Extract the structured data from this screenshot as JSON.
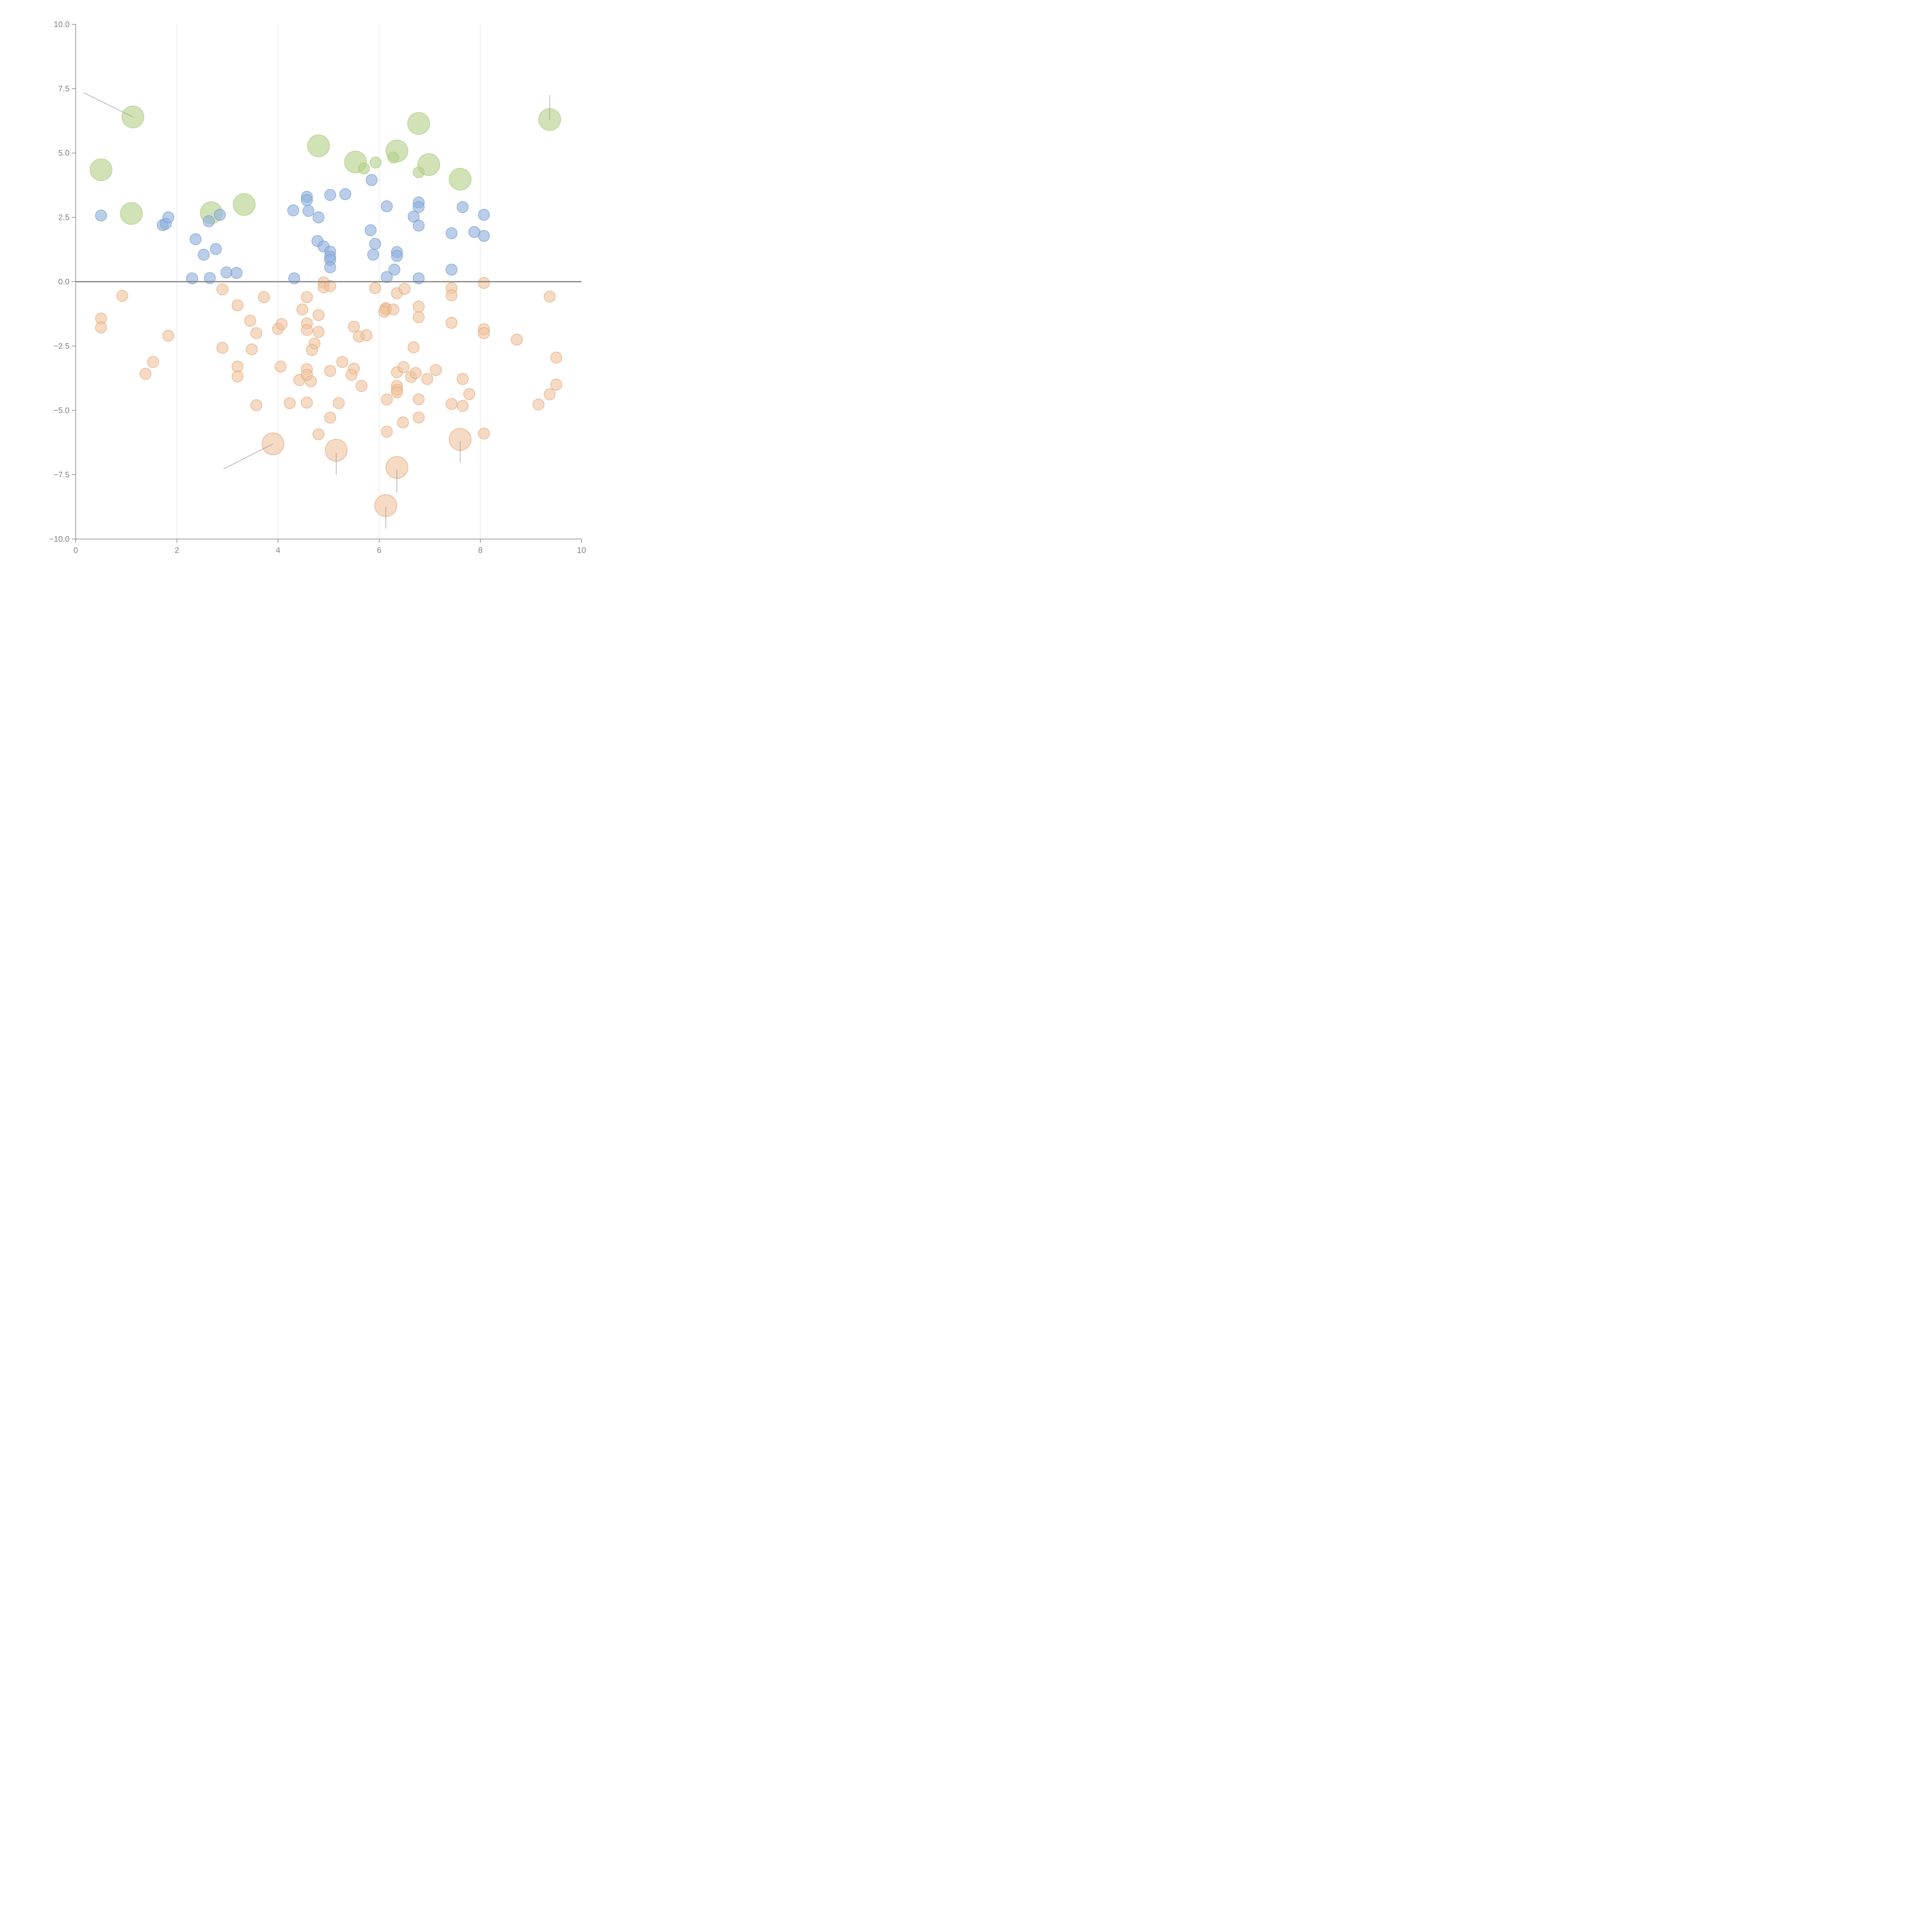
{
  "chart_data": {
    "type": "scatter",
    "title": "",
    "xlabel": "",
    "ylabel": "",
    "xlim": [
      0,
      10
    ],
    "ylim": [
      -10,
      10
    ],
    "grid": "vertical",
    "x_ticks": [
      "0",
      "2",
      "4",
      "6",
      "8",
      "10"
    ],
    "y_ticks": [
      "10.0",
      "7.5",
      "5.0",
      "2.5",
      "0.0",
      "−2.5",
      "−5.0",
      "−7.5",
      "−10.0"
    ],
    "x_tick_values": [
      0,
      2,
      4,
      6,
      8,
      10
    ],
    "y_tick_values": [
      10,
      7.5,
      5,
      2.5,
      0,
      -2.5,
      -5,
      -7.5,
      -10
    ],
    "zero_line": 0,
    "series": [
      {
        "name": "green",
        "color": "#b5d08a",
        "stroke": "#a9c97a",
        "points": [
          {
            "x": 1.13,
            "y": 6.4,
            "s": 2
          },
          {
            "x": 0.5,
            "y": 4.35,
            "s": 2
          },
          {
            "x": 1.1,
            "y": 2.65,
            "s": 2
          },
          {
            "x": 2.68,
            "y": 2.68,
            "s": 2
          },
          {
            "x": 3.33,
            "y": 3.0,
            "s": 2
          },
          {
            "x": 4.8,
            "y": 5.28,
            "s": 2
          },
          {
            "x": 5.53,
            "y": 4.65,
            "s": 2
          },
          {
            "x": 5.7,
            "y": 4.4,
            "s": 1
          },
          {
            "x": 5.93,
            "y": 4.63,
            "s": 1
          },
          {
            "x": 6.28,
            "y": 4.82,
            "s": 1
          },
          {
            "x": 6.35,
            "y": 5.08,
            "s": 2
          },
          {
            "x": 6.78,
            "y": 6.15,
            "s": 2
          },
          {
            "x": 6.78,
            "y": 4.25,
            "s": 1
          },
          {
            "x": 6.98,
            "y": 4.55,
            "s": 2
          },
          {
            "x": 7.6,
            "y": 3.98,
            "s": 2
          },
          {
            "x": 9.37,
            "y": 6.3,
            "s": 2
          }
        ]
      },
      {
        "name": "blue",
        "color": "#8fb0db",
        "stroke": "#6f98cf",
        "points": [
          {
            "x": 0.5,
            "y": 2.57,
            "s": 1
          },
          {
            "x": 1.72,
            "y": 2.2,
            "s": 1
          },
          {
            "x": 1.78,
            "y": 2.25,
            "s": 1
          },
          {
            "x": 1.83,
            "y": 2.5,
            "s": 1
          },
          {
            "x": 2.37,
            "y": 1.65,
            "s": 1
          },
          {
            "x": 2.53,
            "y": 1.05,
            "s": 1
          },
          {
            "x": 2.3,
            "y": 0.13,
            "s": 1
          },
          {
            "x": 2.63,
            "y": 2.35,
            "s": 1
          },
          {
            "x": 2.65,
            "y": 0.14,
            "s": 1
          },
          {
            "x": 2.77,
            "y": 1.27,
            "s": 1
          },
          {
            "x": 2.85,
            "y": 2.6,
            "s": 1
          },
          {
            "x": 2.98,
            "y": 0.36,
            "s": 1
          },
          {
            "x": 3.18,
            "y": 0.34,
            "s": 1
          },
          {
            "x": 4.3,
            "y": 2.77,
            "s": 1
          },
          {
            "x": 4.32,
            "y": 0.13,
            "s": 1
          },
          {
            "x": 4.57,
            "y": 3.3,
            "s": 1
          },
          {
            "x": 4.57,
            "y": 3.17,
            "s": 1
          },
          {
            "x": 4.6,
            "y": 2.75,
            "s": 1
          },
          {
            "x": 4.8,
            "y": 2.5,
            "s": 1
          },
          {
            "x": 4.78,
            "y": 1.58,
            "s": 1
          },
          {
            "x": 4.9,
            "y": 1.37,
            "s": 1
          },
          {
            "x": 5.03,
            "y": 1.17,
            "s": 1
          },
          {
            "x": 5.03,
            "y": 0.97,
            "s": 1
          },
          {
            "x": 5.03,
            "y": 0.85,
            "s": 1
          },
          {
            "x": 5.03,
            "y": 0.56,
            "s": 1
          },
          {
            "x": 5.03,
            "y": 3.37,
            "s": 1
          },
          {
            "x": 5.33,
            "y": 3.4,
            "s": 1
          },
          {
            "x": 5.85,
            "y": 3.95,
            "s": 1
          },
          {
            "x": 5.83,
            "y": 2.0,
            "s": 1
          },
          {
            "x": 5.92,
            "y": 1.47,
            "s": 1
          },
          {
            "x": 5.88,
            "y": 1.05,
            "s": 1
          },
          {
            "x": 6.15,
            "y": 2.93,
            "s": 1
          },
          {
            "x": 6.15,
            "y": 0.18,
            "s": 1
          },
          {
            "x": 6.3,
            "y": 0.47,
            "s": 1
          },
          {
            "x": 6.35,
            "y": 1.15,
            "s": 1
          },
          {
            "x": 6.35,
            "y": 1.0,
            "s": 1
          },
          {
            "x": 6.68,
            "y": 2.53,
            "s": 1
          },
          {
            "x": 6.78,
            "y": 3.08,
            "s": 1
          },
          {
            "x": 6.78,
            "y": 2.9,
            "s": 1
          },
          {
            "x": 6.78,
            "y": 2.18,
            "s": 1
          },
          {
            "x": 6.78,
            "y": 0.13,
            "s": 1
          },
          {
            "x": 7.43,
            "y": 1.88,
            "s": 1
          },
          {
            "x": 7.43,
            "y": 0.47,
            "s": 1
          },
          {
            "x": 7.65,
            "y": 2.9,
            "s": 1
          },
          {
            "x": 7.88,
            "y": 1.93,
            "s": 1
          },
          {
            "x": 8.07,
            "y": 2.6,
            "s": 1
          },
          {
            "x": 8.07,
            "y": 1.78,
            "s": 1
          }
        ]
      },
      {
        "name": "orange",
        "color": "#efc49f",
        "stroke": "#e4a470",
        "points": [
          {
            "x": 0.92,
            "y": -0.55,
            "s": 1
          },
          {
            "x": 0.5,
            "y": -1.43,
            "s": 1
          },
          {
            "x": 0.5,
            "y": -1.78,
            "s": 1
          },
          {
            "x": 1.83,
            "y": -2.1,
            "s": 1
          },
          {
            "x": 1.53,
            "y": -3.12,
            "s": 1
          },
          {
            "x": 1.38,
            "y": -3.58,
            "s": 1
          },
          {
            "x": 2.9,
            "y": -0.3,
            "s": 1
          },
          {
            "x": 3.2,
            "y": -0.92,
            "s": 1
          },
          {
            "x": 3.45,
            "y": -1.52,
            "s": 1
          },
          {
            "x": 3.57,
            "y": -2.0,
            "s": 1
          },
          {
            "x": 3.48,
            "y": -2.63,
            "s": 1
          },
          {
            "x": 2.9,
            "y": -2.57,
            "s": 1
          },
          {
            "x": 3.2,
            "y": -3.3,
            "s": 1
          },
          {
            "x": 3.2,
            "y": -3.68,
            "s": 1
          },
          {
            "x": 3.57,
            "y": -4.8,
            "s": 1
          },
          {
            "x": 3.72,
            "y": -0.6,
            "s": 1
          },
          {
            "x": 4.0,
            "y": -1.83,
            "s": 1
          },
          {
            "x": 4.07,
            "y": -1.65,
            "s": 1
          },
          {
            "x": 4.05,
            "y": -3.3,
            "s": 1
          },
          {
            "x": 4.23,
            "y": -4.72,
            "s": 1
          },
          {
            "x": 4.42,
            "y": -3.82,
            "s": 1
          },
          {
            "x": 4.48,
            "y": -1.08,
            "s": 1
          },
          {
            "x": 4.57,
            "y": -0.6,
            "s": 1
          },
          {
            "x": 4.57,
            "y": -1.62,
            "s": 1
          },
          {
            "x": 4.57,
            "y": -1.88,
            "s": 1
          },
          {
            "x": 4.57,
            "y": -3.4,
            "s": 1
          },
          {
            "x": 4.57,
            "y": -3.62,
            "s": 1
          },
          {
            "x": 4.65,
            "y": -3.87,
            "s": 1
          },
          {
            "x": 4.57,
            "y": -4.7,
            "s": 1
          },
          {
            "x": 4.72,
            "y": -2.4,
            "s": 1
          },
          {
            "x": 4.67,
            "y": -2.65,
            "s": 1
          },
          {
            "x": 4.8,
            "y": -1.3,
            "s": 1
          },
          {
            "x": 4.8,
            "y": -1.95,
            "s": 1
          },
          {
            "x": 4.8,
            "y": -5.93,
            "s": 1
          },
          {
            "x": 4.9,
            "y": -0.03,
            "s": 1
          },
          {
            "x": 4.9,
            "y": -0.22,
            "s": 1
          },
          {
            "x": 5.03,
            "y": -0.17,
            "s": 1
          },
          {
            "x": 5.03,
            "y": -3.47,
            "s": 1
          },
          {
            "x": 5.03,
            "y": -5.28,
            "s": 1
          },
          {
            "x": 5.27,
            "y": -3.12,
            "s": 1
          },
          {
            "x": 5.2,
            "y": -4.72,
            "s": 1
          },
          {
            "x": 5.5,
            "y": -1.75,
            "s": 1
          },
          {
            "x": 5.6,
            "y": -2.13,
            "s": 1
          },
          {
            "x": 5.5,
            "y": -3.38,
            "s": 1
          },
          {
            "x": 5.45,
            "y": -3.62,
            "s": 1
          },
          {
            "x": 5.75,
            "y": -2.08,
            "s": 1
          },
          {
            "x": 5.65,
            "y": -4.05,
            "s": 1
          },
          {
            "x": 5.92,
            "y": -0.25,
            "s": 1
          },
          {
            "x": 6.13,
            "y": -1.03,
            "s": 1
          },
          {
            "x": 6.13,
            "y": -1.08,
            "s": 1
          },
          {
            "x": 6.1,
            "y": -1.17,
            "s": 1
          },
          {
            "x": 6.28,
            "y": -1.08,
            "s": 1
          },
          {
            "x": 6.35,
            "y": -0.45,
            "s": 1
          },
          {
            "x": 6.5,
            "y": -0.28,
            "s": 1
          },
          {
            "x": 6.35,
            "y": -3.52,
            "s": 1
          },
          {
            "x": 6.48,
            "y": -3.32,
            "s": 1
          },
          {
            "x": 6.35,
            "y": -4.05,
            "s": 1
          },
          {
            "x": 6.35,
            "y": -4.2,
            "s": 1
          },
          {
            "x": 6.35,
            "y": -4.3,
            "s": 1
          },
          {
            "x": 6.15,
            "y": -4.58,
            "s": 1
          },
          {
            "x": 6.47,
            "y": -5.47,
            "s": 1
          },
          {
            "x": 6.15,
            "y": -5.83,
            "s": 1
          },
          {
            "x": 6.63,
            "y": -3.7,
            "s": 1
          },
          {
            "x": 6.72,
            "y": -3.55,
            "s": 1
          },
          {
            "x": 6.68,
            "y": -2.55,
            "s": 1
          },
          {
            "x": 6.78,
            "y": -0.97,
            "s": 1
          },
          {
            "x": 6.78,
            "y": -1.38,
            "s": 1
          },
          {
            "x": 6.78,
            "y": -4.57,
            "s": 1
          },
          {
            "x": 6.78,
            "y": -5.28,
            "s": 1
          },
          {
            "x": 6.95,
            "y": -3.78,
            "s": 1
          },
          {
            "x": 7.12,
            "y": -3.43,
            "s": 1
          },
          {
            "x": 7.43,
            "y": -0.25,
            "s": 1
          },
          {
            "x": 7.43,
            "y": -0.53,
            "s": 1
          },
          {
            "x": 7.43,
            "y": -1.6,
            "s": 1
          },
          {
            "x": 7.43,
            "y": -4.75,
            "s": 1
          },
          {
            "x": 7.65,
            "y": -3.78,
            "s": 1
          },
          {
            "x": 7.65,
            "y": -4.83,
            "s": 1
          },
          {
            "x": 7.78,
            "y": -4.37,
            "s": 1
          },
          {
            "x": 8.07,
            "y": -0.05,
            "s": 1
          },
          {
            "x": 8.07,
            "y": -1.85,
            "s": 1
          },
          {
            "x": 8.07,
            "y": -2.0,
            "s": 1
          },
          {
            "x": 8.07,
            "y": -5.9,
            "s": 1
          },
          {
            "x": 8.72,
            "y": -2.25,
            "s": 1
          },
          {
            "x": 9.15,
            "y": -4.77,
            "s": 1
          },
          {
            "x": 9.37,
            "y": -0.58,
            "s": 1
          },
          {
            "x": 9.37,
            "y": -4.38,
            "s": 1
          },
          {
            "x": 9.5,
            "y": -2.95,
            "s": 1
          },
          {
            "x": 9.5,
            "y": -4.0,
            "s": 1
          },
          {
            "x": 3.9,
            "y": -6.3,
            "s": 2
          },
          {
            "x": 5.15,
            "y": -6.55,
            "s": 2
          },
          {
            "x": 6.35,
            "y": -7.22,
            "s": 2
          },
          {
            "x": 6.13,
            "y": -8.7,
            "s": 2
          },
          {
            "x": 7.6,
            "y": -6.13,
            "s": 2
          }
        ]
      }
    ],
    "leader_lines": [
      {
        "from": [
          1.13,
          6.4
        ],
        "to": [
          0.15,
          7.35
        ]
      },
      {
        "from": [
          9.37,
          6.3
        ],
        "to": [
          9.37,
          7.25
        ]
      },
      {
        "from": [
          3.9,
          -6.3
        ],
        "to": [
          2.92,
          -7.28
        ]
      },
      {
        "from": [
          5.15,
          -6.65
        ],
        "to": [
          5.15,
          -7.5
        ]
      },
      {
        "from": [
          6.35,
          -7.3
        ],
        "to": [
          6.35,
          -8.2
        ]
      },
      {
        "from": [
          6.13,
          -8.75
        ],
        "to": [
          6.13,
          -9.6
        ]
      },
      {
        "from": [
          7.6,
          -6.2
        ],
        "to": [
          7.6,
          -7.05
        ]
      }
    ]
  }
}
